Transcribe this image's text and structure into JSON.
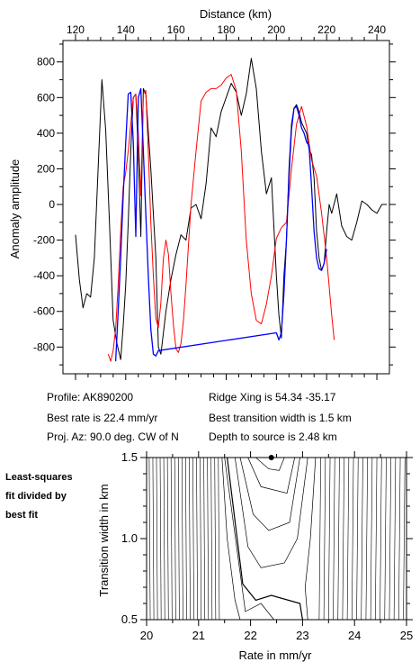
{
  "info": {
    "profile": "Profile: AK890200",
    "best_rate": "Best rate is 22.4 mm/yr",
    "proj_az": "Proj. Az: 90.0 deg. CW of N",
    "ridge_xing": "Ridge Xing is 54.34 -35.17",
    "best_width": "Best transition width is 1.5 km",
    "depth": "Depth to source is   2.48 km"
  },
  "side_label": [
    "Least-squares",
    "fit divided by",
    "best fit"
  ],
  "colors": {
    "observed": "#000000",
    "model": "#ff0000",
    "fit": "#0000ff",
    "contour": "#000000",
    "marker": "#000000"
  },
  "chart_data": [
    {
      "type": "line",
      "title": "",
      "xlabel": "Distance (km)",
      "ylabel": "Anomaly amplitude",
      "xlim": [
        115,
        245
      ],
      "ylim": [
        -950,
        920
      ],
      "x_ticks": [
        "120",
        "140",
        "160",
        "180",
        "200",
        "220",
        "240"
      ],
      "y_ticks": [
        "800",
        "600",
        "400",
        "200",
        "0",
        "-200",
        "-400",
        "-600",
        "-800"
      ],
      "series": [
        {
          "role": "observed",
          "x": [
            120,
            121.5,
            123,
            124.5,
            126,
            127.5,
            129,
            130.5,
            132,
            133.5,
            135,
            136.5,
            138,
            139,
            140,
            141,
            142,
            143,
            144,
            145,
            146,
            147,
            148,
            150,
            152,
            153,
            154,
            156,
            158,
            160,
            162,
            164,
            166,
            168,
            170,
            172,
            174,
            176,
            178,
            180,
            182,
            184,
            186,
            188,
            190,
            192,
            194,
            196,
            198,
            200,
            201,
            202,
            203,
            204,
            205,
            206,
            207,
            208,
            209,
            210,
            211,
            212,
            213,
            214,
            215,
            216,
            217,
            218,
            219,
            220,
            221,
            222,
            224,
            226,
            228,
            230,
            232,
            234,
            236,
            238,
            240,
            242,
            244
          ],
          "y": [
            -170,
            -420,
            -580,
            -500,
            -520,
            -300,
            200,
            700,
            420,
            -100,
            -650,
            -780,
            -870,
            -680,
            -450,
            -100,
            300,
            600,
            620,
            280,
            -180,
            650,
            620,
            200,
            -300,
            -800,
            -840,
            -600,
            -420,
            -280,
            -170,
            -200,
            -20,
            0,
            -80,
            120,
            430,
            380,
            520,
            600,
            680,
            630,
            500,
            620,
            820,
            650,
            300,
            60,
            150,
            -400,
            -620,
            -750,
            -400,
            -200,
            200,
            450,
            540,
            560,
            520,
            460,
            430,
            400,
            310,
            280,
            150,
            -150,
            -300,
            -370,
            -330,
            -150,
            0,
            -50,
            60,
            -120,
            -180,
            -200,
            -100,
            20,
            0,
            -30,
            -50,
            0,
            0
          ]
        },
        {
          "role": "model",
          "x": [
            133,
            134,
            135,
            136,
            137,
            138,
            139,
            140,
            141,
            142,
            143,
            144,
            145,
            146,
            147,
            148,
            149,
            150,
            151,
            152,
            153,
            154,
            155,
            156,
            157,
            158,
            159,
            160,
            161,
            162,
            163,
            164,
            166,
            168,
            170,
            172,
            174,
            176,
            178,
            180,
            182,
            184,
            186,
            188,
            190,
            192,
            194,
            196,
            198,
            200,
            202,
            204,
            206,
            208,
            210,
            212,
            214,
            216,
            218,
            220,
            222,
            223
          ],
          "y": [
            -840,
            -880,
            -820,
            -700,
            -450,
            -150,
            100,
            180,
            300,
            450,
            600,
            620,
            400,
            50,
            620,
            640,
            300,
            -100,
            -400,
            -640,
            -690,
            -550,
            -300,
            -200,
            -280,
            -500,
            -680,
            -810,
            -830,
            -780,
            -650,
            -450,
            0,
            300,
            580,
            630,
            650,
            650,
            670,
            710,
            730,
            640,
            300,
            -200,
            -500,
            -650,
            -670,
            -560,
            -400,
            -190,
            -130,
            -100,
            200,
            450,
            550,
            440,
            250,
            160,
            -50,
            -300,
            -620,
            -760
          ]
        },
        {
          "role": "fit",
          "x": [
            136,
            137,
            138,
            139,
            140,
            141,
            142,
            143,
            144,
            145,
            146,
            147,
            148,
            149,
            150,
            151,
            152,
            153,
            200,
            201,
            202,
            203,
            204,
            205,
            206,
            207,
            208,
            209,
            210,
            211,
            212,
            213,
            214,
            215,
            216,
            217,
            218,
            219,
            220
          ],
          "y": [
            -880,
            -600,
            -300,
            50,
            350,
            620,
            630,
            350,
            -180,
            600,
            650,
            300,
            -50,
            -400,
            -700,
            -840,
            -850,
            -820,
            -720,
            -760,
            -720,
            -500,
            -200,
            150,
            420,
            540,
            550,
            500,
            430,
            400,
            350,
            330,
            100,
            -150,
            -300,
            -360,
            -370,
            -330,
            -250
          ]
        }
      ]
    },
    {
      "type": "contour",
      "title": "",
      "xlabel": "Rate in mm/yr",
      "ylabel": "Transition width in km",
      "xlim": [
        20,
        25
      ],
      "ylim": [
        0.5,
        1.5
      ],
      "x_ticks": [
        "20",
        "21",
        "22",
        "23",
        "24",
        "25"
      ],
      "y_ticks": [
        "1.5",
        "1.0",
        "0.5"
      ],
      "best_fit": {
        "rate": 22.4,
        "width": 1.5
      }
    }
  ]
}
